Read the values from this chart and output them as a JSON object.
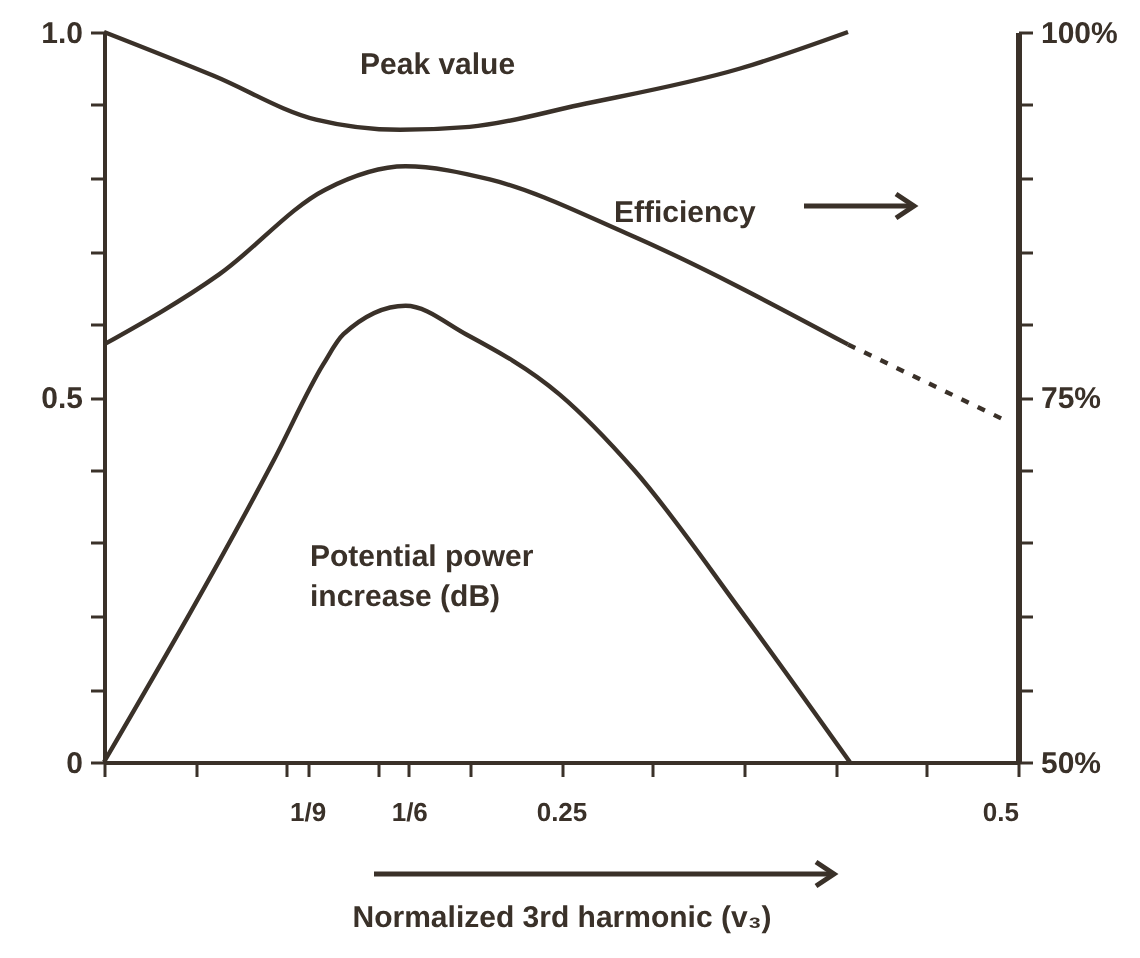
{
  "chart_data": {
    "type": "line",
    "xlabel": "Normalized 3rd harmonic (v₃)",
    "xlim": [
      0,
      0.5
    ],
    "xticks": [
      {
        "value": 0,
        "label": null
      },
      {
        "value": 0.05,
        "label": null
      },
      {
        "value": 0.1,
        "label": null
      },
      {
        "value": 0.1111,
        "label": "1/9"
      },
      {
        "value": 0.15,
        "label": null
      },
      {
        "value": 0.1667,
        "label": "1/6"
      },
      {
        "value": 0.2,
        "label": null
      },
      0.25,
      {
        "value": 0.3,
        "label": null
      },
      {
        "value": 0.35,
        "label": null
      },
      {
        "value": 0.4,
        "label": null
      },
      {
        "value": 0.45,
        "label": null
      },
      0.5
    ],
    "ylim": [
      0,
      1
    ],
    "yticks": [
      0,
      {
        "value": 0.1,
        "label": null
      },
      {
        "value": 0.2,
        "label": null
      },
      {
        "value": 0.3,
        "label": null
      },
      {
        "value": 0.4,
        "label": null
      },
      0.5,
      {
        "value": 0.6,
        "label": null
      },
      {
        "value": 0.7,
        "label": null
      },
      {
        "value": 0.8,
        "label": null
      },
      {
        "value": 0.9,
        "label": null
      },
      {
        "value": 1,
        "label": "1.0"
      }
    ],
    "y2lim": [
      50,
      100
    ],
    "y2ticks": [
      {
        "value": 50,
        "label": "50%"
      },
      {
        "value": 55,
        "label": null
      },
      {
        "value": 60,
        "label": null
      },
      {
        "value": 65,
        "label": null
      },
      {
        "value": 70,
        "label": null
      },
      {
        "value": 75,
        "label": "75%"
      },
      {
        "value": 80,
        "label": null
      },
      {
        "value": 85,
        "label": null
      },
      {
        "value": 90,
        "label": null
      },
      {
        "value": 95,
        "label": null
      },
      {
        "value": 100,
        "label": "100%"
      }
    ],
    "series": [
      {
        "name": "Peak value",
        "color": "#3a3129",
        "line_style": "solid",
        "x": [
          0,
          0.06,
          0.116,
          0.162,
          0.2,
          0.26,
          0.348,
          0.407
        ],
        "values": [
          1.0,
          0.94,
          0.88,
          0.866,
          0.87,
          0.9,
          0.95,
          1.0
        ]
      },
      {
        "name": "Efficiency",
        "color": "#3a3129",
        "line_style": "solid",
        "axis": "y2",
        "x": [
          0,
          0.063,
          0.121,
          0.165,
          0.211,
          0.286,
          0.407
        ],
        "values": [
          78.6,
          83.4,
          89.2,
          90.8,
          89.9,
          86.2,
          78.6
        ]
      },
      {
        "color": "#3a3129",
        "line_style": "dashed",
        "axis": "y2",
        "x": [
          0.407,
          0.493
        ],
        "values": [
          78.6,
          73.4
        ]
      },
      {
        "name": "Potential power increase (dB)",
        "color": "#3a3129",
        "line_style": "solid",
        "x": [
          0,
          0.093,
          0.12,
          0.131,
          0.165,
          0.198,
          0.249,
          0.29,
          0.349,
          0.408
        ],
        "values": [
          0,
          0.414,
          0.545,
          0.586,
          0.625,
          0.586,
          0.504,
          0.4,
          0.205,
          0
        ]
      }
    ]
  }
}
